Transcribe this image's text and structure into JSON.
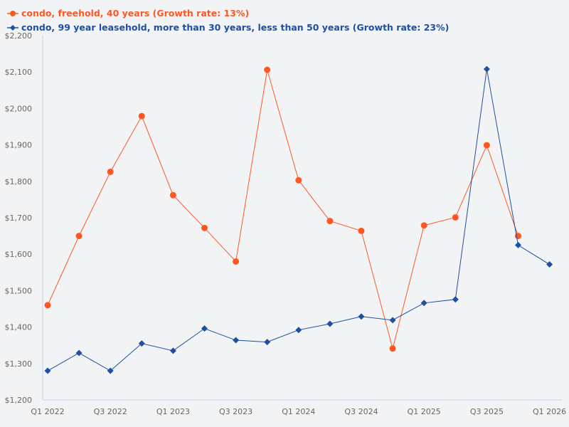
{
  "chart_data": {
    "type": "line",
    "title": "",
    "xlabel": "",
    "ylabel": "",
    "categories": [
      "Q1 2022",
      "Q2 2022",
      "Q3 2022",
      "Q4 2022",
      "Q1 2023",
      "Q2 2023",
      "Q3 2023",
      "Q4 2023",
      "Q1 2024",
      "Q2 2024",
      "Q3 2024",
      "Q4 2024",
      "Q1 2025",
      "Q2 2025",
      "Q3 2025",
      "Q4 2025",
      "Q1 2026"
    ],
    "x_tick_labels": [
      "Q1 2022",
      "Q3 2022",
      "Q1 2023",
      "Q3 2023",
      "Q1 2024",
      "Q3 2024",
      "Q1 2025",
      "Q3 2025",
      "Q1 2026"
    ],
    "y_tick_labels": [
      "$1,200",
      "$1,300",
      "$1,400",
      "$1,500",
      "$1,600",
      "$1,700",
      "$1,800",
      "$1,900",
      "$2,000",
      "$2,100",
      "$2,200"
    ],
    "ylim": [
      1200,
      2200
    ],
    "grid": false,
    "legend_position": "top-left",
    "series": [
      {
        "name": "condo, freehold, 40 years (Growth rate: 13%)",
        "color": "#ff5722",
        "marker": "circle",
        "values": [
          1460,
          1650,
          1826,
          1979,
          1762,
          1672,
          1580,
          2106,
          1803,
          1691,
          1664,
          1341,
          1679,
          1701,
          1899,
          1650,
          null
        ]
      },
      {
        "name": "condo, 99 year leasehold, more than 30 years, less than 50 years (Growth rate: 23%)",
        "color": "#1e4fa3",
        "marker": "diamond",
        "values": [
          1280,
          1329,
          1280,
          1355,
          1335,
          1396,
          1364,
          1359,
          1392,
          1409,
          1429,
          1419,
          1466,
          1476,
          2108,
          1625,
          1572
        ]
      }
    ]
  }
}
